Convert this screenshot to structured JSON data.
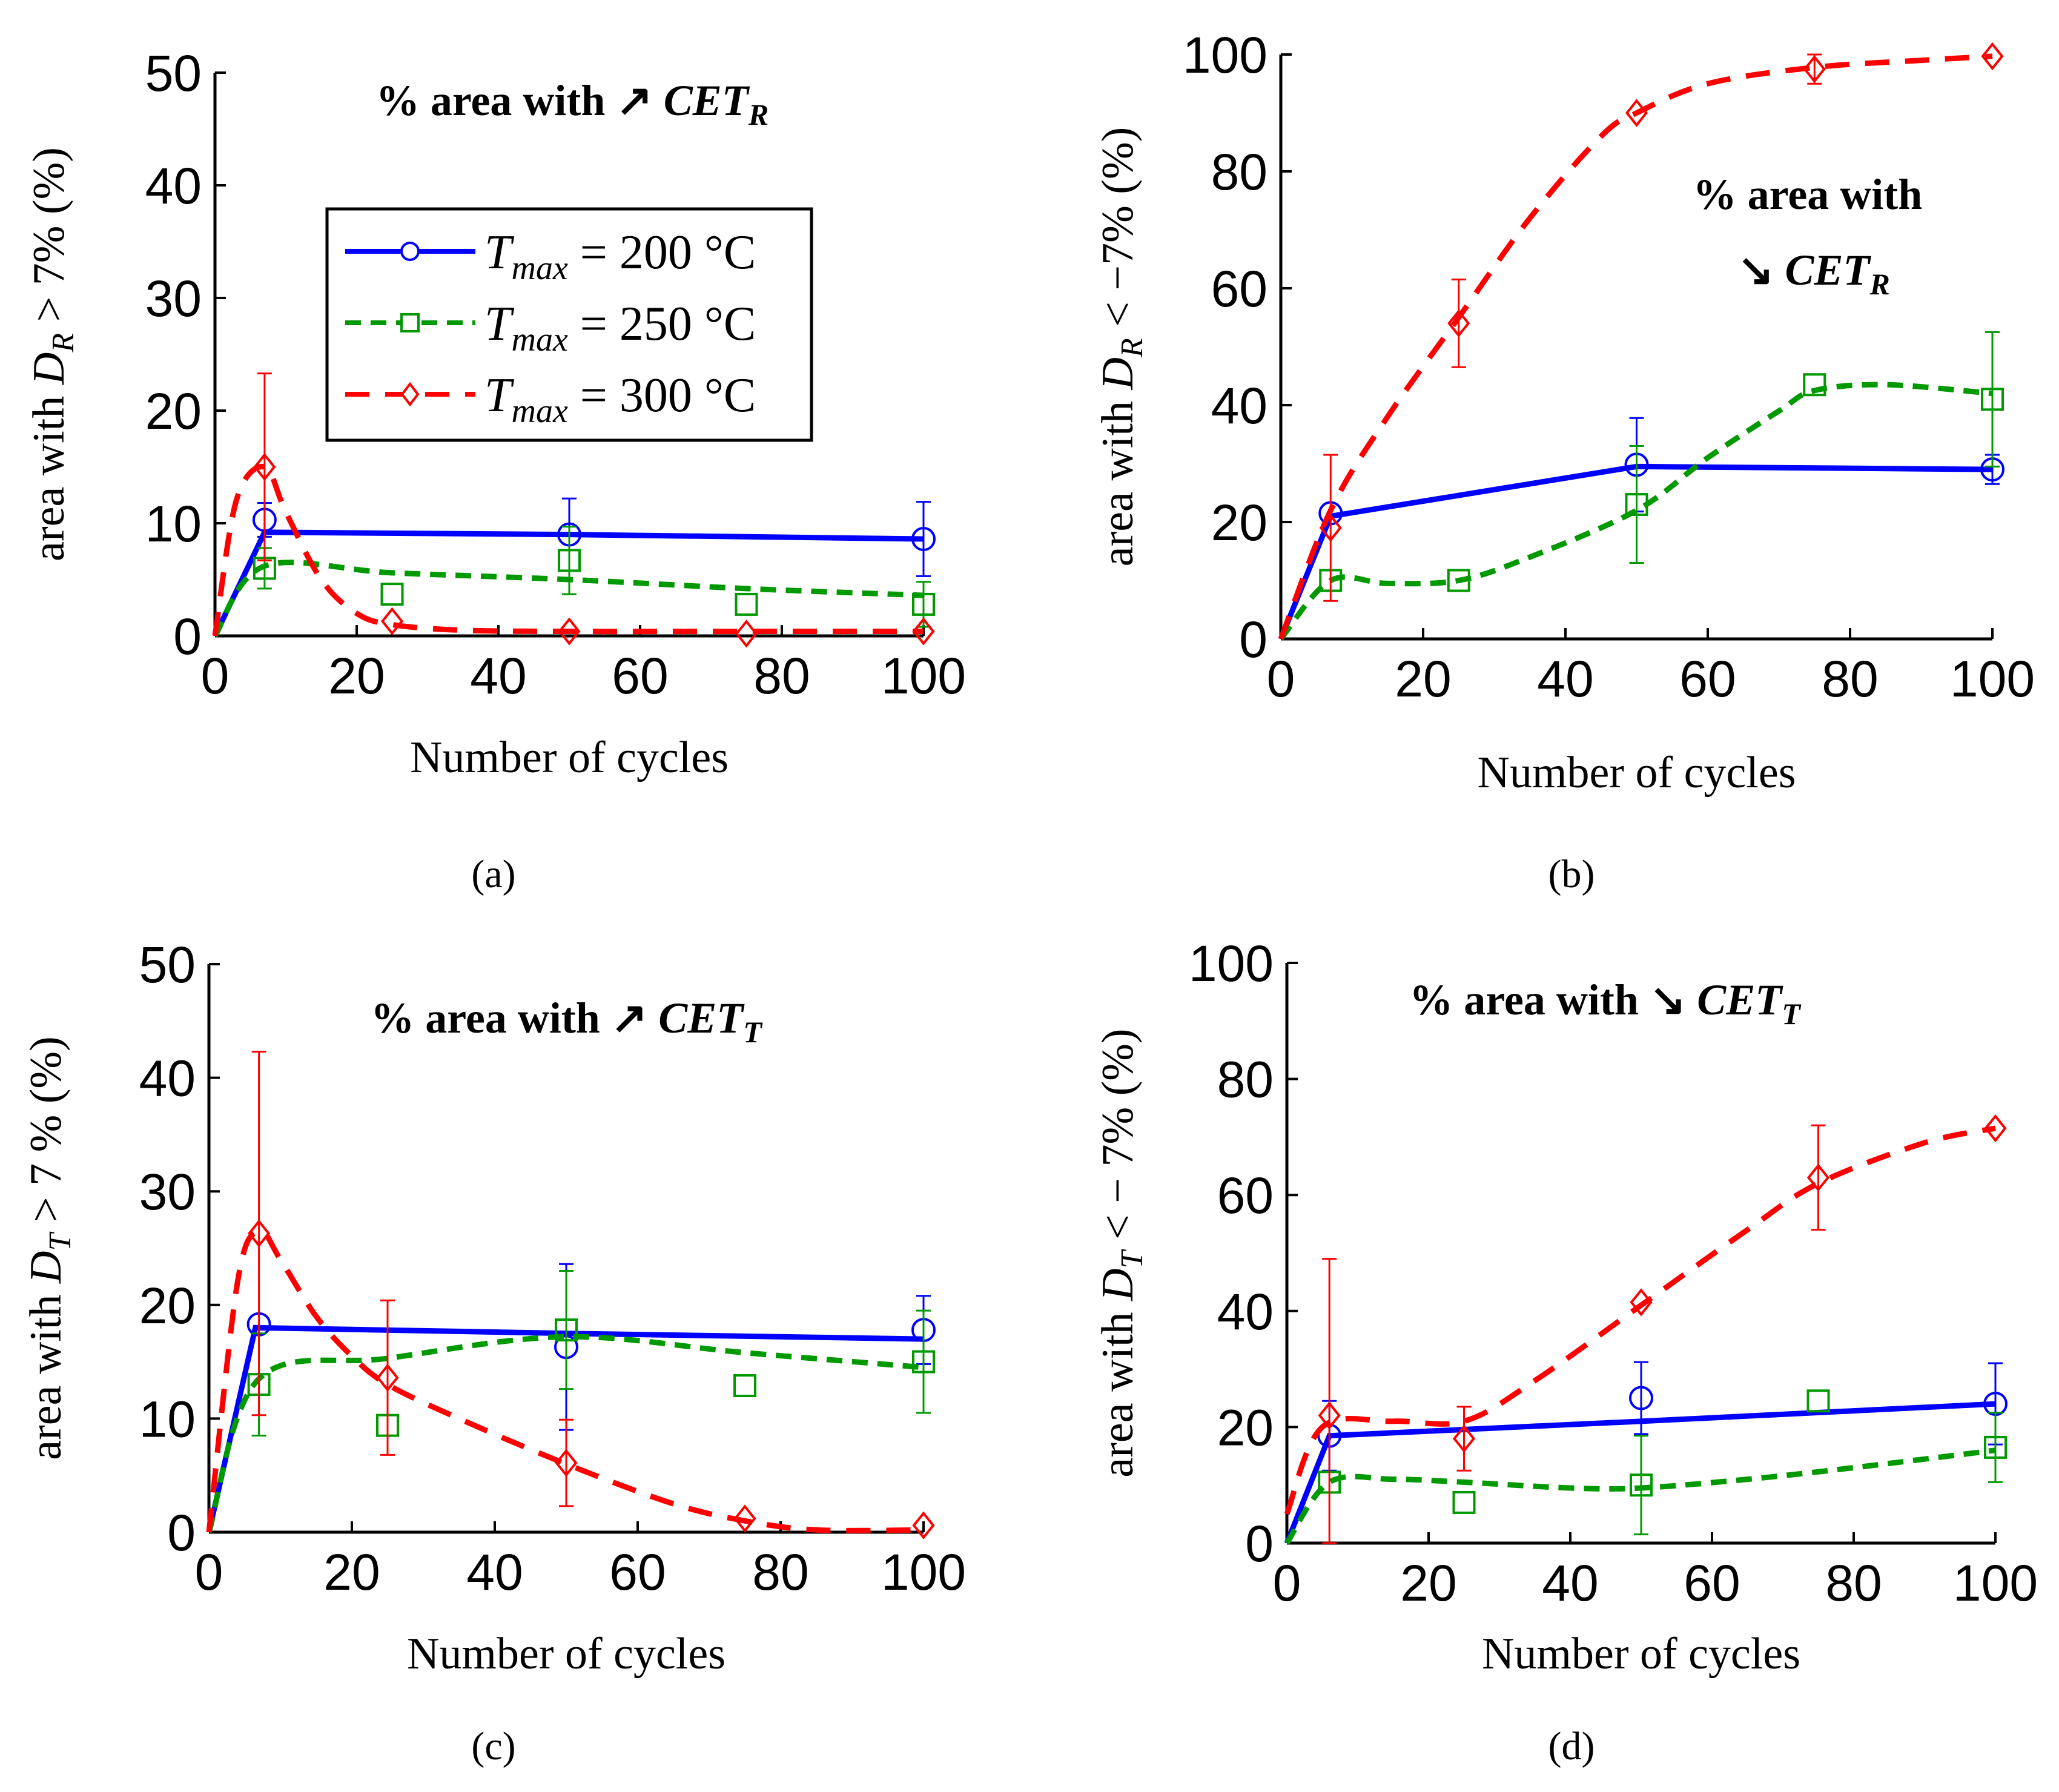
{
  "legend": {
    "series": [
      {
        "symbol": "T",
        "sub": "max",
        "text": " = 200 °C",
        "color": "#0000ff",
        "marker": "circle",
        "dash": "solid"
      },
      {
        "symbol": "T",
        "sub": "max",
        "text": " = 250 °C",
        "color": "#009900",
        "marker": "square",
        "dash": "dash"
      },
      {
        "symbol": "T",
        "sub": "max",
        "text": " = 300 °C",
        "color": "#ff0000",
        "marker": "diamond",
        "dash": "longdash"
      }
    ]
  },
  "chart_data": [
    {
      "type": "line",
      "panel_label": "(a)",
      "title_prefix": "% area with",
      "title_arrow": "↗",
      "title_symbol": "CET",
      "title_sub": "R",
      "ylabel_prefix": "area with",
      "ylabel_symbol": "D",
      "ylabel_sub": "R",
      "ylabel_suffix": " > 7% (%)",
      "xlabel": "Number of cycles",
      "xlim": [
        0,
        100
      ],
      "ylim": [
        0,
        50
      ],
      "xticks": [
        "0",
        "20",
        "40",
        "60",
        "80",
        "100"
      ],
      "yticks": [
        "0",
        "10",
        "20",
        "30",
        "40",
        "50"
      ],
      "series": [
        {
          "name": "Tmax = 200 °C",
          "color": "#0000ff",
          "curve": [
            [
              0,
              0
            ],
            [
              7,
              9.2
            ],
            [
              50,
              9
            ],
            [
              100,
              8.6
            ]
          ],
          "points": [
            [
              7,
              10.3
            ],
            [
              50,
              9
            ],
            [
              100,
              8.6
            ]
          ],
          "errors": [
            [
              7,
              10.3,
              1.5
            ],
            [
              50,
              9,
              3.2
            ],
            [
              100,
              8.6,
              3.3
            ]
          ]
        },
        {
          "name": "Tmax = 250 °C",
          "color": "#009900",
          "curve": [
            [
              0,
              0
            ],
            [
              7,
              6.2
            ],
            [
              25,
              5.6
            ],
            [
              50,
              5
            ],
            [
              75,
              4.2
            ],
            [
              100,
              3.6
            ]
          ],
          "points": [
            [
              7,
              6
            ],
            [
              25,
              3.7
            ],
            [
              50,
              6.7
            ],
            [
              75,
              2.8
            ],
            [
              100,
              2.8
            ]
          ],
          "errors": [
            [
              7,
              6,
              1.8
            ],
            [
              25,
              3.7,
              0
            ],
            [
              50,
              6.7,
              3
            ],
            [
              75,
              2.8,
              0
            ],
            [
              100,
              2.8,
              2
            ]
          ]
        },
        {
          "name": "Tmax = 300 °C",
          "color": "#ff0000",
          "curve": [
            [
              0,
              0
            ],
            [
              3,
              12
            ],
            [
              7,
              15
            ],
            [
              10,
              11
            ],
            [
              15,
              5
            ],
            [
              20,
              2
            ],
            [
              25,
              1
            ],
            [
              35,
              0.5
            ],
            [
              50,
              0.4
            ],
            [
              75,
              0.4
            ],
            [
              100,
              0.4
            ]
          ],
          "points": [
            [
              7,
              15
            ],
            [
              25,
              1.3
            ],
            [
              50,
              0.4
            ],
            [
              75,
              0.2
            ],
            [
              100,
              0.4
            ]
          ],
          "errors": [
            [
              7,
              15,
              8.3
            ]
          ]
        }
      ]
    },
    {
      "type": "line",
      "panel_label": "(b)",
      "title_prefix": "% area with",
      "title_arrow": "↘",
      "title_symbol": "CET",
      "title_sub": "R",
      "ylabel_prefix": "area with",
      "ylabel_symbol": "D",
      "ylabel_sub": "R",
      "ylabel_suffix": " < −7%  (%)",
      "xlabel": "Number of cycles",
      "xlim": [
        0,
        100
      ],
      "ylim": [
        0,
        100
      ],
      "xticks": [
        "0",
        "20",
        "40",
        "60",
        "80",
        "100"
      ],
      "yticks": [
        "0",
        "20",
        "40",
        "60",
        "80",
        "100"
      ],
      "series": [
        {
          "name": "Tmax = 200 °C",
          "color": "#0000ff",
          "curve": [
            [
              0,
              0
            ],
            [
              7,
              21
            ],
            [
              50,
              29.5
            ],
            [
              100,
              29
            ]
          ],
          "points": [
            [
              7,
              21.5
            ],
            [
              50,
              29.8
            ],
            [
              100,
              29
            ]
          ],
          "errors": [
            [
              7,
              21.5,
              0
            ],
            [
              50,
              29.8,
              8
            ],
            [
              100,
              29,
              2.5
            ]
          ]
        },
        {
          "name": "Tmax = 250 °C",
          "color": "#009900",
          "curve": [
            [
              0,
              0
            ],
            [
              7,
              10
            ],
            [
              15,
              9.5
            ],
            [
              25,
              10
            ],
            [
              35,
              14
            ],
            [
              50,
              22
            ],
            [
              60,
              31
            ],
            [
              70,
              39
            ],
            [
              75,
              42.5
            ],
            [
              85,
              43.5
            ],
            [
              100,
              42
            ]
          ],
          "points": [
            [
              7,
              10
            ],
            [
              25,
              10
            ],
            [
              50,
              23
            ],
            [
              75,
              43.5
            ],
            [
              100,
              41
            ]
          ],
          "errors": [
            [
              50,
              23,
              10
            ],
            [
              100,
              41,
              11.5
            ]
          ]
        },
        {
          "name": "Tmax = 300 °C",
          "color": "#ff0000",
          "curve": [
            [
              0,
              0
            ],
            [
              7,
              22
            ],
            [
              15,
              38
            ],
            [
              25,
              55
            ],
            [
              35,
              72
            ],
            [
              45,
              86
            ],
            [
              50,
              90
            ],
            [
              60,
              95
            ],
            [
              75,
              97.8
            ],
            [
              90,
              99
            ],
            [
              100,
              99.7
            ]
          ],
          "points": [
            [
              7,
              19
            ],
            [
              25,
              54
            ],
            [
              50,
              90
            ],
            [
              75,
              97.5
            ],
            [
              100,
              99.7
            ]
          ],
          "errors": [
            [
              7,
              19,
              12.5
            ],
            [
              25,
              54,
              7.5
            ],
            [
              75,
              97.5,
              2.5
            ]
          ]
        }
      ]
    },
    {
      "type": "line",
      "panel_label": "(c)",
      "title_prefix": "% area with",
      "title_arrow": "↗",
      "title_symbol": "CET",
      "title_sub": "T",
      "ylabel_prefix": "area with",
      "ylabel_symbol": "D",
      "ylabel_sub": "T",
      "ylabel_suffix": " > 7 % (%)",
      "xlabel": "Number of cycles",
      "xlim": [
        0,
        100
      ],
      "ylim": [
        0,
        50
      ],
      "xticks": [
        "0",
        "20",
        "40",
        "60",
        "80",
        "100"
      ],
      "yticks": [
        "0",
        "10",
        "20",
        "30",
        "40",
        "50"
      ],
      "series": [
        {
          "name": "Tmax = 200 °C",
          "color": "#0000ff",
          "curve": [
            [
              0,
              0
            ],
            [
              6.5,
              18
            ],
            [
              50,
              17.5
            ],
            [
              100,
              17
            ]
          ],
          "points": [
            [
              7,
              18.3
            ],
            [
              50,
              16.3
            ],
            [
              100,
              17.8
            ]
          ],
          "errors": [
            [
              50,
              16.3,
              7.3
            ],
            [
              100,
              17.8,
              3
            ]
          ]
        },
        {
          "name": "Tmax = 250 °C",
          "color": "#009900",
          "curve": [
            [
              0,
              0
            ],
            [
              7,
              13.5
            ],
            [
              25,
              15.3
            ],
            [
              50,
              17.2
            ],
            [
              75,
              15.8
            ],
            [
              100,
              14.5
            ]
          ],
          "points": [
            [
              7,
              13
            ],
            [
              25,
              9.4
            ],
            [
              50,
              17.8
            ],
            [
              75,
              12.9
            ],
            [
              100,
              15
            ]
          ],
          "errors": [
            [
              7,
              13,
              4.5
            ],
            [
              50,
              17.8,
              5.2
            ],
            [
              75,
              12.9,
              0
            ],
            [
              100,
              15,
              4.5
            ]
          ]
        },
        {
          "name": "Tmax = 300 °C",
          "color": "#ff0000",
          "curve": [
            [
              0,
              0
            ],
            [
              4,
              22
            ],
            [
              7,
              26.5
            ],
            [
              10,
              24
            ],
            [
              15,
              19
            ],
            [
              20,
              15.5
            ],
            [
              25,
              13
            ],
            [
              35,
              10
            ],
            [
              50,
              6
            ],
            [
              65,
              2.5
            ],
            [
              75,
              1
            ],
            [
              85,
              0.2
            ],
            [
              100,
              0.2
            ]
          ],
          "points": [
            [
              7,
              26.3
            ],
            [
              25,
              13.6
            ],
            [
              50,
              6.1
            ],
            [
              75,
              1.2
            ],
            [
              100,
              0.6
            ]
          ],
          "errors": [
            [
              7,
              26.3,
              16
            ],
            [
              25,
              13.6,
              6.8
            ],
            [
              50,
              6.1,
              3.8
            ]
          ]
        }
      ]
    },
    {
      "type": "line",
      "panel_label": "(d)",
      "title_prefix": "% area with",
      "title_arrow": "↘",
      "title_symbol": "CET",
      "title_sub": "T",
      "ylabel_prefix": "area with",
      "ylabel_symbol": "D",
      "ylabel_sub": "T",
      "ylabel_suffix": " < − 7% (%)",
      "xlabel": "Number of cycles",
      "xlim": [
        0,
        100
      ],
      "ylim": [
        0,
        100
      ],
      "xticks": [
        "0",
        "20",
        "40",
        "60",
        "80",
        "100"
      ],
      "yticks": [
        "0",
        "20",
        "40",
        "60",
        "80",
        "100"
      ],
      "series": [
        {
          "name": "Tmax = 200 °C",
          "color": "#0000ff",
          "curve": [
            [
              0,
              0
            ],
            [
              6,
              18.5
            ],
            [
              50,
              21
            ],
            [
              100,
              24
            ]
          ],
          "points": [
            [
              6,
              18.5
            ],
            [
              50,
              25
            ],
            [
              100,
              24
            ]
          ],
          "errors": [
            [
              6,
              18.5,
              6
            ],
            [
              50,
              25,
              6.2
            ],
            [
              100,
              24,
              7
            ]
          ]
        },
        {
          "name": "Tmax = 250 °C",
          "color": "#009900",
          "curve": [
            [
              0,
              0
            ],
            [
              6,
              10.5
            ],
            [
              15,
              11
            ],
            [
              25,
              10.5
            ],
            [
              40,
              9.5
            ],
            [
              50,
              9.5
            ],
            [
              65,
              11
            ],
            [
              80,
              13
            ],
            [
              100,
              16
            ]
          ],
          "points": [
            [
              6,
              10.5
            ],
            [
              25,
              7
            ],
            [
              50,
              10
            ],
            [
              75,
              24.5
            ],
            [
              100,
              16.5
            ]
          ],
          "errors": [
            [
              50,
              10,
              8.5
            ],
            [
              100,
              16.5,
              6
            ]
          ]
        },
        {
          "name": "Tmax = 300 °C",
          "color": "#ff0000",
          "curve": [
            [
              0,
              5
            ],
            [
              5,
              20
            ],
            [
              15,
              21
            ],
            [
              25,
              21
            ],
            [
              35,
              28
            ],
            [
              50,
              41
            ],
            [
              65,
              54
            ],
            [
              75,
              62
            ],
            [
              90,
              69
            ],
            [
              100,
              71.5
            ]
          ],
          "points": [
            [
              6,
              22
            ],
            [
              25,
              18
            ],
            [
              50,
              41.5
            ],
            [
              75,
              63
            ],
            [
              100,
              71.5
            ]
          ],
          "errors": [
            [
              6,
              22,
              27
            ],
            [
              25,
              18,
              5.5
            ],
            [
              75,
              63,
              9
            ]
          ]
        }
      ]
    }
  ]
}
